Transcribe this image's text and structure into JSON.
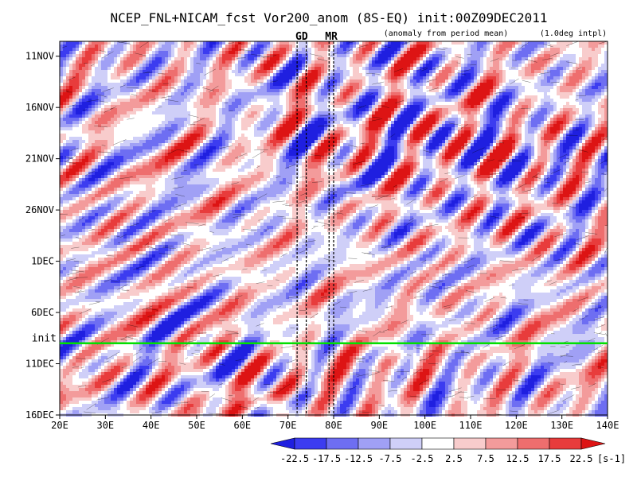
{
  "chart_data": {
    "type": "heatmap",
    "title": "NCEP_FNL+NICAM_fcst Vor200_anom (8S-EQ) init:00Z09DEC2011",
    "subtitle": "(anomaly from period mean)",
    "note": "(1.0deg intpl)",
    "x_axis": {
      "range": [
        "20E",
        "140E"
      ],
      "tick_labels": [
        "20E",
        "30E",
        "40E",
        "50E",
        "60E",
        "70E",
        "80E",
        "90E",
        "100E",
        "110E",
        "120E",
        "130E",
        "140E"
      ],
      "tick_values": [
        20,
        30,
        40,
        50,
        60,
        70,
        80,
        90,
        100,
        110,
        120,
        130,
        140
      ]
    },
    "y_axis": {
      "range": [
        "09NOV",
        "16DEC"
      ],
      "tick_labels": [
        "11NOV",
        "16NOV",
        "21NOV",
        "26NOV",
        "1DEC",
        "6DEC",
        "11DEC",
        "16DEC"
      ],
      "tick_values": [
        2,
        7,
        12,
        17,
        22,
        27,
        32,
        37
      ]
    },
    "init_line": {
      "label": "init",
      "value": 30,
      "color": "#00e000"
    },
    "region_markers": [
      {
        "label": "GD",
        "lon_start": 72,
        "lon_end": 74,
        "color": "#e00000"
      },
      {
        "label": "MR",
        "lon_start": 79,
        "lon_end": 80,
        "color": "#e00000"
      }
    ],
    "colorbar": {
      "unit": "[s-1]",
      "boundaries": [
        -22.5,
        -17.5,
        -12.5,
        -7.5,
        -2.5,
        2.5,
        7.5,
        12.5,
        17.5,
        22.5
      ],
      "tick_labels": [
        "-22.5",
        "-17.5",
        "-12.5",
        "-7.5",
        "-2.5",
        "2.5",
        "7.5",
        "12.5",
        "17.5",
        "22.5"
      ],
      "colors": [
        "#1f1fe0",
        "#3c3cf0",
        "#6e6ef2",
        "#a0a0f5",
        "#cfcff8",
        "#ffffff",
        "#f8cccc",
        "#f39b9b",
        "#ee6e6e",
        "#e83c3c",
        "#dd1414"
      ]
    }
  }
}
